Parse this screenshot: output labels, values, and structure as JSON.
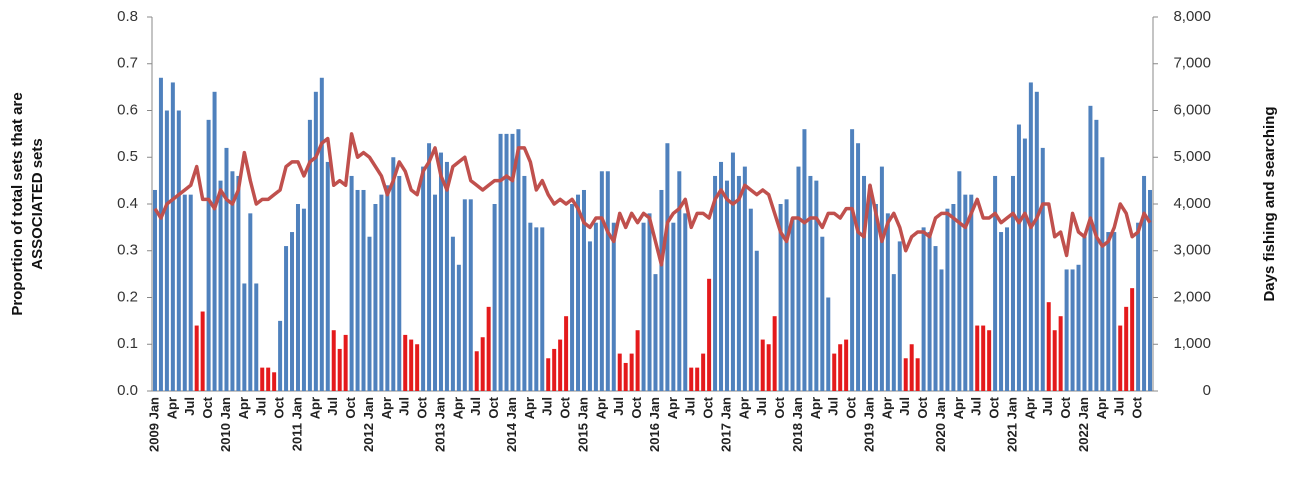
{
  "chart_data": {
    "type": "bar_line",
    "ylabel": [
      "Proportion of total sets that are",
      "ASSOCIATED sets"
    ],
    "y2label": "Days fishing and searching",
    "categories": [
      "2009 Jan",
      null,
      null,
      "Apr",
      null,
      null,
      "Jul",
      null,
      null,
      "Oct",
      null,
      null,
      "2010 Jan",
      null,
      null,
      "Apr",
      null,
      null,
      "Jul",
      null,
      null,
      "Oct",
      null,
      null,
      "2011 Jan",
      null,
      null,
      "Apr",
      null,
      null,
      "Jul",
      null,
      null,
      "Oct",
      null,
      null,
      "2012 Jan",
      null,
      null,
      "Apr",
      null,
      null,
      "Jul",
      null,
      null,
      "Oct",
      null,
      null,
      "2013 Jan",
      null,
      null,
      "Apr",
      null,
      null,
      "Jul",
      null,
      null,
      "Oct",
      null,
      null,
      "2014 Jan",
      null,
      null,
      "Apr",
      null,
      null,
      "Jul",
      null,
      null,
      "Oct",
      null,
      null,
      "2015 Jan",
      null,
      null,
      "Apr",
      null,
      null,
      "Jul",
      null,
      null,
      "Oct",
      null,
      null,
      "2016 Jan",
      null,
      null,
      "Apr",
      null,
      null,
      "Jul",
      null,
      null,
      "Oct",
      null,
      null,
      "2017 Jan",
      null,
      null,
      "Apr",
      null,
      null,
      "Jul",
      null,
      null,
      "Oct",
      null,
      null,
      "2018 Jan",
      null,
      null,
      "Apr",
      null,
      null,
      "Jul",
      null,
      null,
      "Oct",
      null,
      null,
      "2019 Jan",
      null,
      null,
      "Apr",
      null,
      null,
      "Jul",
      null,
      null,
      "Oct",
      null,
      null,
      "2020 Jan",
      null,
      null,
      "Apr",
      null,
      null,
      "Jul",
      null,
      null,
      "Oct",
      null,
      null,
      "2021 Jan",
      null,
      null,
      "Apr",
      null,
      null,
      "Jul",
      null,
      null,
      "Oct",
      null,
      null,
      "2022 Jan",
      null,
      null,
      "Apr",
      null,
      null,
      "Jul",
      null,
      null,
      "Oct",
      null,
      null
    ],
    "series": [
      {
        "type": "bar",
        "color": "#4f81bd",
        "values": [
          0.43,
          0.67,
          0.6,
          0.66,
          0.6,
          0.42,
          0.42,
          null,
          null,
          0.58,
          0.64,
          0.45,
          0.52,
          0.47,
          0.46,
          0.23,
          0.38,
          0.23,
          null,
          null,
          null,
          0.15,
          0.31,
          0.34,
          0.4,
          0.39,
          0.58,
          0.64,
          0.67,
          0.49,
          null,
          null,
          null,
          0.46,
          0.43,
          0.43,
          0.33,
          0.4,
          0.42,
          0.44,
          0.5,
          0.46,
          null,
          null,
          null,
          0.48,
          0.53,
          0.42,
          0.51,
          0.49,
          0.33,
          0.27,
          0.41,
          0.41,
          null,
          null,
          null,
          0.4,
          0.55,
          0.55,
          0.55,
          0.56,
          0.46,
          0.36,
          0.35,
          0.35,
          null,
          null,
          null,
          null,
          0.4,
          0.42,
          0.43,
          0.32,
          0.36,
          0.47,
          0.47,
          0.36,
          null,
          null,
          null,
          null,
          0.36,
          0.38,
          0.25,
          0.43,
          0.53,
          0.36,
          0.47,
          0.38,
          null,
          null,
          null,
          null,
          0.46,
          0.49,
          0.45,
          0.51,
          0.46,
          0.48,
          0.39,
          0.3,
          null,
          null,
          null,
          0.4,
          0.41,
          0.37,
          0.48,
          0.56,
          0.46,
          0.45,
          0.33,
          0.2,
          null,
          null,
          null,
          0.56,
          0.53,
          0.46,
          0.44,
          0.4,
          0.48,
          0.38,
          0.25,
          0.32,
          null,
          null,
          null,
          0.35,
          0.34,
          0.31,
          0.26,
          0.39,
          0.4,
          0.47,
          0.42,
          0.42,
          null,
          null,
          null,
          0.46,
          0.34,
          0.35,
          0.46,
          0.57,
          0.54,
          0.66,
          0.64,
          0.52,
          null,
          null,
          null,
          0.26,
          0.26,
          0.27,
          0.33,
          0.61,
          0.58,
          0.5,
          0.34,
          0.34,
          null,
          null,
          null,
          0.36,
          0.46,
          0.43
        ]
      },
      {
        "type": "bar",
        "color": "#e41a1c",
        "values": [
          null,
          null,
          null,
          null,
          null,
          null,
          null,
          0.14,
          0.17,
          null,
          null,
          null,
          null,
          null,
          null,
          null,
          null,
          null,
          0.05,
          0.05,
          0.04,
          null,
          null,
          null,
          null,
          null,
          null,
          null,
          null,
          null,
          0.13,
          0.09,
          0.12,
          null,
          null,
          null,
          null,
          null,
          null,
          null,
          null,
          null,
          0.12,
          0.11,
          0.1,
          null,
          null,
          null,
          null,
          null,
          null,
          null,
          null,
          null,
          0.085,
          0.115,
          0.18,
          null,
          null,
          null,
          null,
          null,
          null,
          null,
          null,
          null,
          0.07,
          0.09,
          0.11,
          0.16,
          null,
          null,
          null,
          null,
          null,
          null,
          null,
          null,
          0.08,
          0.06,
          0.08,
          0.13,
          null,
          null,
          null,
          null,
          null,
          null,
          null,
          null,
          0.05,
          0.05,
          0.08,
          0.24,
          null,
          null,
          null,
          null,
          null,
          null,
          null,
          null,
          0.11,
          0.1,
          0.16,
          null,
          null,
          null,
          null,
          null,
          null,
          null,
          null,
          null,
          0.08,
          0.1,
          0.11,
          null,
          null,
          null,
          null,
          null,
          null,
          null,
          null,
          null,
          0.07,
          0.1,
          0.07,
          null,
          null,
          null,
          null,
          null,
          null,
          null,
          null,
          null,
          0.14,
          0.14,
          0.13,
          null,
          null,
          null,
          null,
          null,
          null,
          null,
          null,
          null,
          0.19,
          0.13,
          0.16,
          null,
          null,
          null,
          null,
          null,
          null,
          null,
          null,
          null,
          0.14,
          0.18,
          0.22,
          null,
          null,
          null
        ]
      },
      {
        "type": "line",
        "axis": "y2",
        "color": "#c0504d",
        "values": [
          3900,
          3700,
          4000,
          4100,
          4200,
          4300,
          4400,
          4800,
          4100,
          4100,
          3900,
          4300,
          4100,
          4000,
          4300,
          5100,
          4500,
          4000,
          4100,
          4100,
          4200,
          4300,
          4800,
          4900,
          4900,
          4600,
          4900,
          5000,
          5300,
          5400,
          4400,
          4500,
          4400,
          5500,
          5000,
          5100,
          5000,
          4800,
          4600,
          4200,
          4500,
          4900,
          4700,
          4300,
          4200,
          4700,
          4900,
          5200,
          4600,
          4300,
          4800,
          4900,
          5000,
          4500,
          4400,
          4300,
          4400,
          4500,
          4500,
          4600,
          4500,
          5200,
          5200,
          4900,
          4300,
          4500,
          4200,
          4000,
          4100,
          4000,
          4100,
          3900,
          3600,
          3500,
          3700,
          3700,
          3400,
          3200,
          3800,
          3500,
          3800,
          3600,
          3800,
          3700,
          3200,
          2700,
          3600,
          3800,
          3900,
          4100,
          3500,
          3800,
          3800,
          3700,
          4100,
          4300,
          4100,
          4000,
          4100,
          4400,
          4300,
          4200,
          4300,
          4200,
          3800,
          3400,
          3200,
          3700,
          3700,
          3600,
          3700,
          3700,
          3500,
          3800,
          3800,
          3700,
          3900,
          3900,
          3400,
          3300,
          4400,
          3800,
          3200,
          3600,
          3800,
          3500,
          3000,
          3300,
          3400,
          3400,
          3300,
          3700,
          3800,
          3800,
          3700,
          3600,
          3500,
          3800,
          4100,
          3700,
          3700,
          3800,
          3600,
          3700,
          3800,
          3600,
          3800,
          3500,
          3700,
          4000,
          4000,
          3300,
          3400,
          2900,
          3800,
          3400,
          3300,
          3700,
          3300,
          3100,
          3200,
          3500,
          4000,
          3800,
          3300,
          3400,
          3800,
          3600
        ]
      }
    ],
    "ylim": [
      0,
      0.8
    ],
    "yticks": [
      {
        "value": 0,
        "label": "0.0"
      },
      0.1,
      0.2,
      0.3,
      0.4,
      0.5,
      0.6,
      0.7,
      0.8
    ],
    "y2lim": [
      0,
      8000
    ],
    "y2ticks": [
      0,
      {
        "value": 1000,
        "label": "1,000"
      },
      {
        "value": 2000,
        "label": "2,000"
      },
      {
        "value": 3000,
        "label": "3,000"
      },
      {
        "value": 4000,
        "label": "4,000"
      },
      {
        "value": 5000,
        "label": "5,000"
      },
      {
        "value": 6000,
        "label": "6,000"
      },
      {
        "value": 7000,
        "label": "7,000"
      },
      {
        "value": 8000,
        "label": "8,000"
      }
    ]
  }
}
